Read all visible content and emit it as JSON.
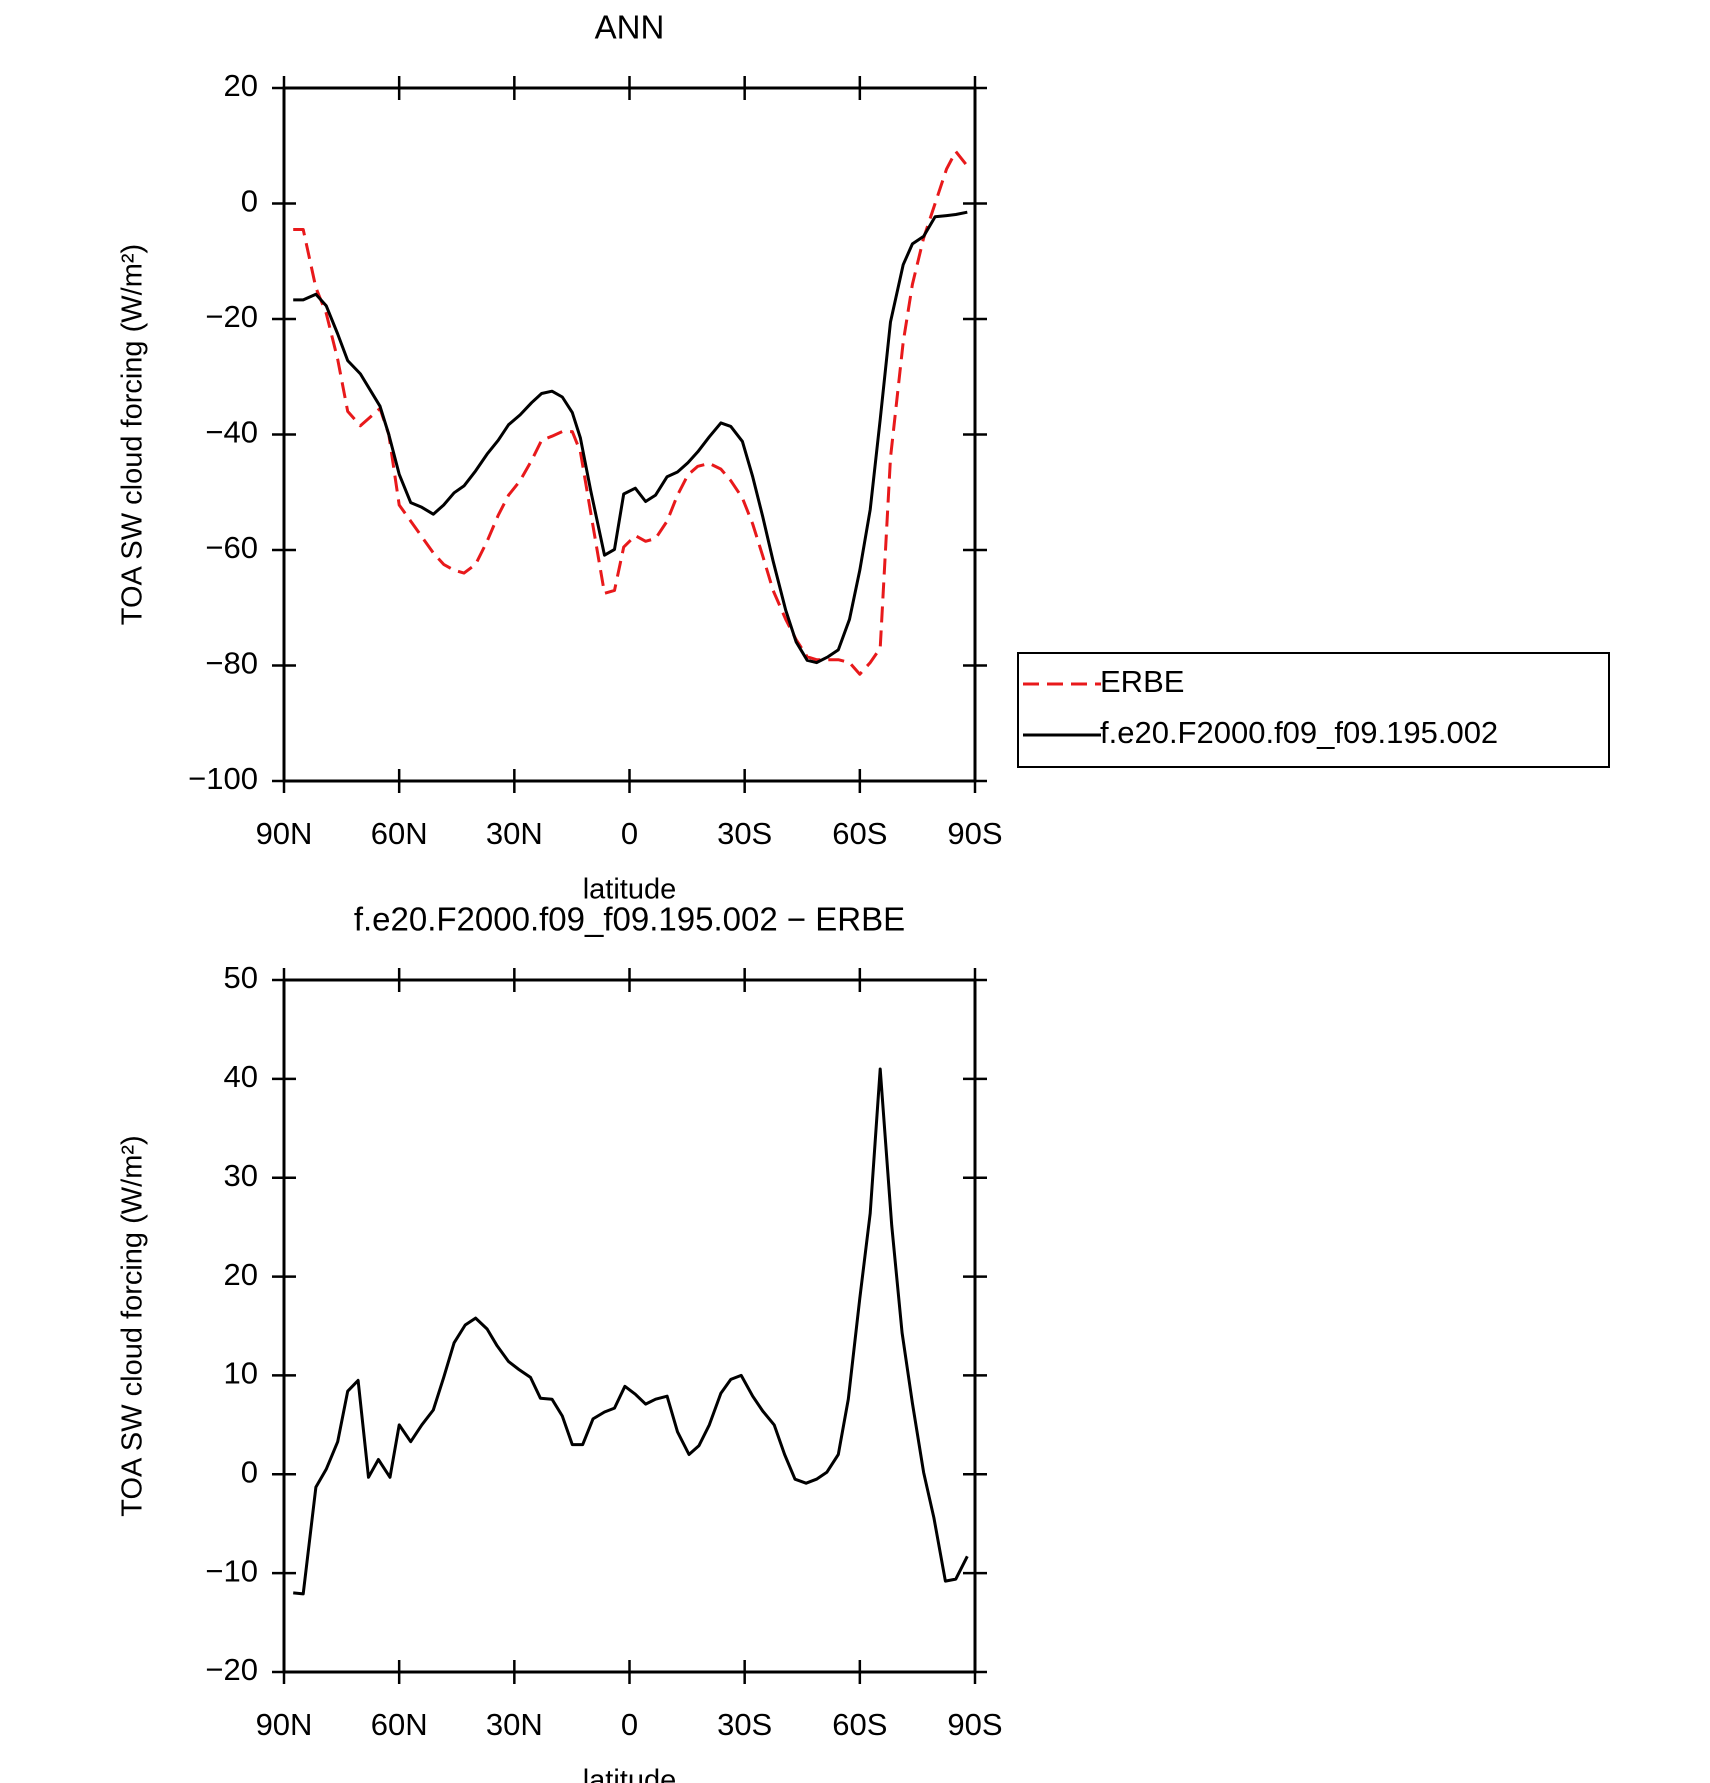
{
  "chart_data": [
    {
      "type": "line",
      "title": "ANN",
      "x_label": "latitude",
      "y_label": "TOA SW cloud forcing (W/m²)",
      "x": [
        87.6,
        85.0,
        81.7,
        79.0,
        76.0,
        73.4,
        70.1,
        65.0,
        62.7,
        60.0,
        57.0,
        54.1,
        51.1,
        48.4,
        45.7,
        43.1,
        40.1,
        37.1,
        34.2,
        31.5,
        28.5,
        25.5,
        22.9,
        20.2,
        17.5,
        14.9,
        12.8,
        10.1,
        6.5,
        3.9,
        1.5,
        -1.5,
        -4.2,
        -6.8,
        -9.8,
        -12.5,
        -15.2,
        -17.8,
        -20.8,
        -23.8,
        -26.4,
        -29.4,
        -32.1,
        -34.7,
        -37.4,
        -40.7,
        -43.4,
        -46.3,
        -48.7,
        -51.7,
        -54.4,
        -57.3,
        -60.0,
        -62.7,
        -65.3,
        -68.0,
        -71.3,
        -73.7,
        -76.6,
        -79.6,
        -82.6,
        -85.0,
        -88.0
      ],
      "series": [
        {
          "name": "ERBE",
          "color": "#e8191b",
          "dashed": true,
          "values": [
            -4.5,
            -4.5,
            -14.6,
            -19,
            -27,
            -36,
            -38.5,
            -35.5,
            -40,
            -52.2,
            -55,
            -57.7,
            -60.5,
            -62.5,
            -63.5,
            -64,
            -62.5,
            -58.5,
            -54,
            -50.5,
            -48,
            -44.5,
            -41,
            -40.3,
            -39.5,
            -39.5,
            -43,
            -53.5,
            -67.5,
            -67,
            -59.5,
            -57.5,
            -58.5,
            -58,
            -55,
            -50.5,
            -47,
            -45.5,
            -45,
            -46,
            -48,
            -51,
            -55.5,
            -61,
            -67,
            -72,
            -75.5,
            -78.5,
            -79,
            -79,
            -79,
            -79.5,
            -81.5,
            -79.5,
            -77,
            -44,
            -24,
            -14,
            -6,
            0,
            6,
            9,
            6.5
          ]
        },
        {
          "name": "f.e20.F2000.f09_f09.195.002",
          "color": "#000000",
          "dashed": false,
          "values": [
            -16.7,
            -16.7,
            -15.7,
            -17.7,
            -22.6,
            -27.2,
            -29.5,
            -35.1,
            -40.0,
            -46.9,
            -51.8,
            -52.6,
            -53.8,
            -52.2,
            -50.1,
            -48.9,
            -46.3,
            -43.4,
            -41.0,
            -38.3,
            -36.6,
            -34.5,
            -32.9,
            -32.5,
            -33.5,
            -36.2,
            -40.6,
            -49.7,
            -60.9,
            -59.9,
            -50.3,
            -49.3,
            -51.6,
            -50.5,
            -47.3,
            -46.5,
            -44.9,
            -43.0,
            -40.4,
            -38.0,
            -38.6,
            -41.2,
            -47.3,
            -54.2,
            -61.9,
            -70.4,
            -75.9,
            -79.1,
            -79.5,
            -78.5,
            -77.3,
            -72.0,
            -63.5,
            -53.0,
            -37.4,
            -20.5,
            -10.6,
            -7.0,
            -5.7,
            -2.3,
            -2.1,
            -1.9,
            -1.5
          ]
        }
      ],
      "xlim": [
        90,
        -90
      ],
      "xticks": [
        {
          "value": 90,
          "label": "90N"
        },
        {
          "value": 60,
          "label": "60N"
        },
        {
          "value": 30,
          "label": "30N"
        },
        0,
        {
          "value": -30,
          "label": "30S"
        },
        {
          "value": -60,
          "label": "60S"
        },
        {
          "value": -90,
          "label": "90S"
        }
      ],
      "ylim": [
        -100,
        20
      ],
      "yticks": [
        {
          "value": -100,
          "label": "−100"
        },
        {
          "value": -80,
          "label": "−80"
        },
        {
          "value": -60,
          "label": "−60"
        },
        {
          "value": -40,
          "label": "−40"
        },
        {
          "value": -20,
          "label": "−20"
        },
        0,
        20
      ],
      "legend": "outside-right"
    },
    {
      "type": "line",
      "title": "f.e20.F2000.f09_f09.195.002 − ERBE",
      "x_label": "latitude",
      "y_label": "TOA SW cloud forcing (W/m²)",
      "x": [
        87.6,
        85.0,
        81.7,
        79.0,
        76.0,
        73.4,
        70.7,
        68.0,
        65.4,
        62.4,
        60.0,
        57.0,
        54.1,
        51.1,
        48.4,
        45.7,
        42.8,
        40.1,
        37.1,
        34.5,
        31.5,
        28.8,
        25.8,
        23.2,
        20.2,
        17.5,
        14.9,
        12.2,
        9.5,
        6.5,
        3.9,
        1.2,
        -1.5,
        -4.2,
        -6.8,
        -9.8,
        -12.5,
        -15.5,
        -18.1,
        -20.8,
        -23.8,
        -26.4,
        -29.1,
        -32.1,
        -34.7,
        -37.7,
        -40.4,
        -43.1,
        -46.0,
        -48.7,
        -51.4,
        -54.4,
        -57.0,
        -60.0,
        -62.7,
        -65.3,
        -68.3,
        -71.0,
        -73.7,
        -76.6,
        -79.3,
        -82.3,
        -85.0,
        -88.0
      ],
      "series": [
        {
          "color": "#000000",
          "dashed": false,
          "values": [
            -12,
            -12.1,
            -1.3,
            0.5,
            3.3,
            8.4,
            9.5,
            -0.3,
            1.5,
            -0.3,
            5,
            3.3,
            5,
            6.5,
            9.8,
            13.3,
            15.1,
            15.8,
            14.7,
            13,
            11.4,
            10.6,
            9.8,
            7.7,
            7.6,
            5.9,
            3,
            3,
            5.6,
            6.3,
            6.7,
            8.9,
            8.1,
            7.1,
            7.6,
            7.9,
            4.3,
            2,
            2.9,
            5,
            8.2,
            9.6,
            10,
            7.9,
            6.4,
            5,
            2,
            -0.5,
            -0.9,
            -0.5,
            0.2,
            2,
            7.6,
            17.8,
            26.4,
            41,
            25.2,
            14.3,
            7.2,
            0.2,
            -4.4,
            -10.8,
            -10.6,
            -8.3
          ]
        }
      ],
      "xlim": [
        90,
        -90
      ],
      "xticks": [
        {
          "value": 90,
          "label": "90N"
        },
        {
          "value": 60,
          "label": "60N"
        },
        {
          "value": 30,
          "label": "30N"
        },
        0,
        {
          "value": -30,
          "label": "30S"
        },
        {
          "value": -60,
          "label": "60S"
        },
        {
          "value": -90,
          "label": "90S"
        }
      ],
      "ylim": [
        -20,
        50
      ],
      "yticks": [
        {
          "value": -20,
          "label": "−20"
        },
        {
          "value": -10,
          "label": "−10"
        },
        0,
        10,
        20,
        30,
        40,
        50
      ]
    }
  ]
}
